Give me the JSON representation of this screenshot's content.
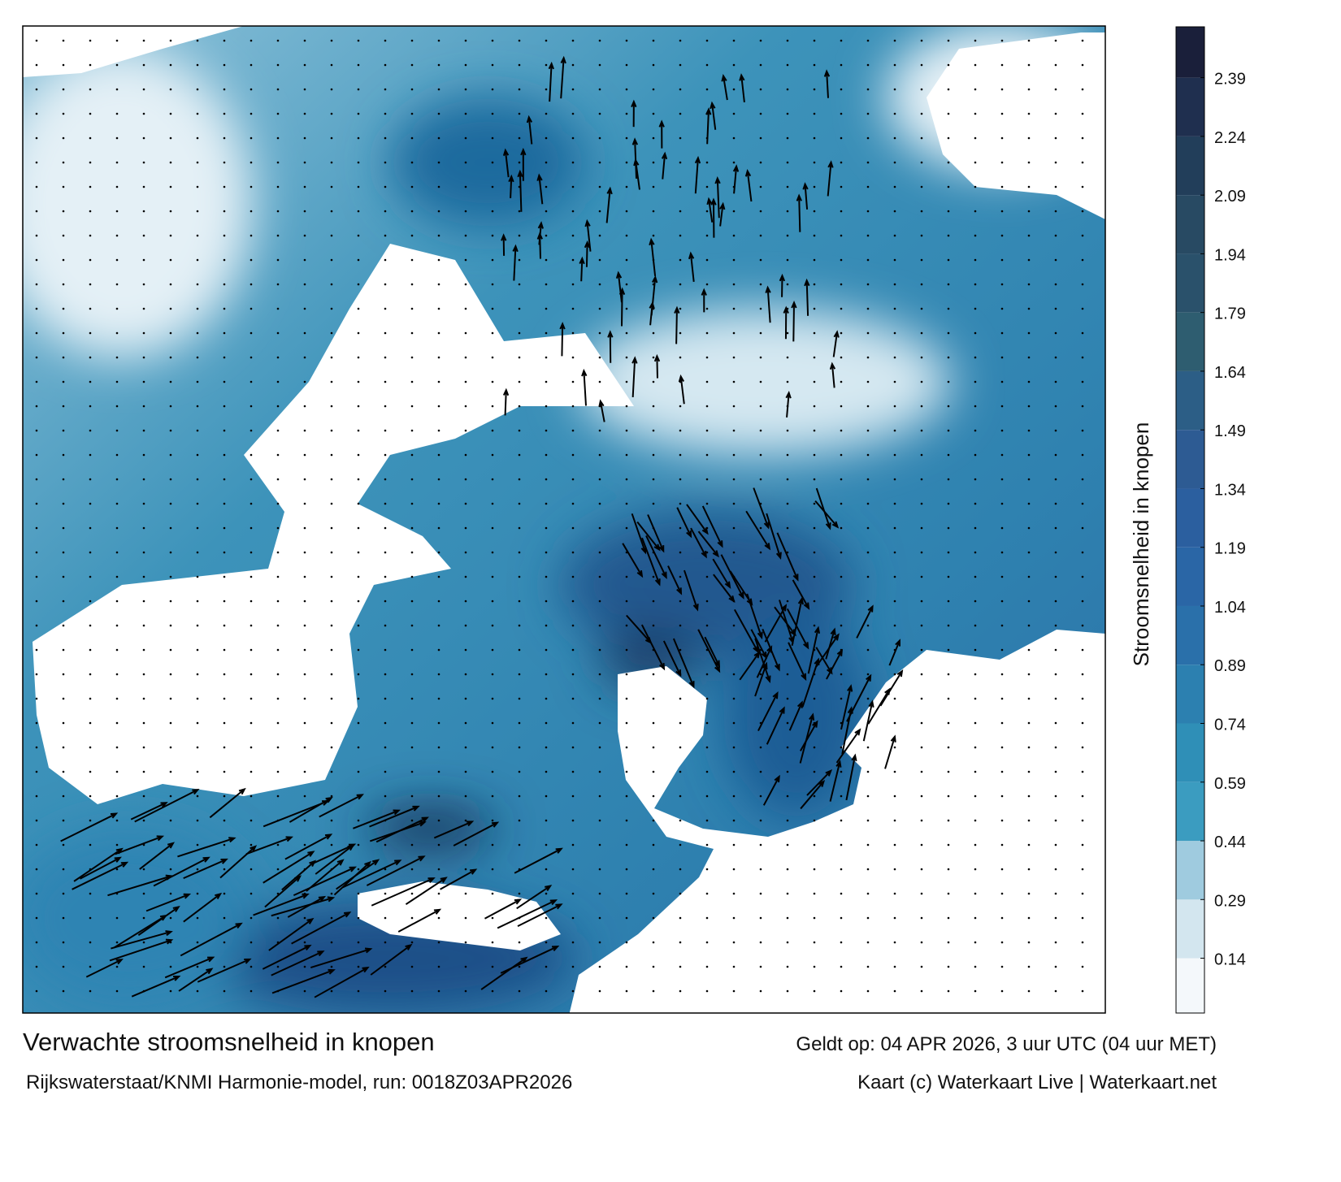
{
  "map": {
    "title": "Verwachte stroomsnelheid in knopen",
    "source": "Rijkswaterstaat/KNMI Harmonie-model, run: 0018Z03APR2026",
    "valid": "Geldt op: 04 APR 2026, 3 uur UTC (04 uur MET)",
    "credit": "Kaart (c) Waterkaart Live | Waterkaart.net"
  },
  "colorbar": {
    "label": "Stroomsnelheid in knopen",
    "lim": [
      0,
      2.52
    ],
    "ticks": [
      0.14,
      0.29,
      0.44,
      0.59,
      0.74,
      0.89,
      1.04,
      1.19,
      1.34,
      1.49,
      1.64,
      1.79,
      1.94,
      2.09,
      2.24,
      2.39
    ],
    "colors": [
      "#f4f8fb",
      "#d3e6ef",
      "#9fcbdf",
      "#3b9cc0",
      "#2f8fb7",
      "#2c80b0",
      "#2a70aa",
      "#2a66a6",
      "#2b5f9f",
      "#2d5b93",
      "#2c5e86",
      "#2e5d70",
      "#2a516b",
      "#284a63",
      "#223e5a",
      "#1f2f4f",
      "#1a1f3a"
    ]
  }
}
